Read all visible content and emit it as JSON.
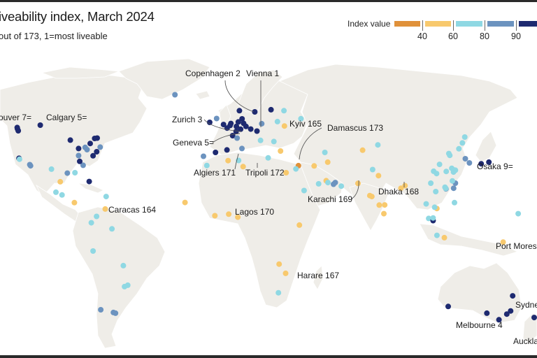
{
  "header": {
    "title": "iveability index, March 2024",
    "subtitle": "out of 173, 1=most liveable"
  },
  "legend": {
    "label": "Index value",
    "ticks": [
      "40",
      "60",
      "80",
      "90"
    ],
    "colors": [
      "#e0913a",
      "#f8c96d",
      "#8fd8e3",
      "#6c93bf",
      "#1e2a70"
    ]
  },
  "chart_data": {
    "type": "scatter",
    "title": "iveability index, March 2024",
    "subtitle": "out of 173, 1=most liveable",
    "legend_placement": "top-right",
    "legend_bins": [
      "<40",
      "40-60",
      "60-80",
      "80-90",
      ">90"
    ],
    "land_color": "#efede8",
    "labeled_cities": [
      {
        "name": "Vienna 1",
        "rank": 1
      },
      {
        "name": "Copenhagen 2",
        "rank": 2
      },
      {
        "name": "Zurich 3",
        "rank": 3
      },
      {
        "name": "Melbourne 4",
        "rank": 4
      },
      {
        "name": "Geneva 5=",
        "rank": 5
      },
      {
        "name": "Calgary 5=",
        "rank": 5
      },
      {
        "name": "ouver 7=",
        "rank": 7
      },
      {
        "name": "Sydne",
        "rank": null
      },
      {
        "name": "Osaka 9=",
        "rank": 9
      },
      {
        "name": "Auckla",
        "rank": null
      },
      {
        "name": "Caracas 164",
        "rank": 164
      },
      {
        "name": "Kyiv 165",
        "rank": 165
      },
      {
        "name": "Harare 167",
        "rank": 167
      },
      {
        "name": "Dhaka 168",
        "rank": 168
      },
      {
        "name": "Karachi 169",
        "rank": 169
      },
      {
        "name": "Lagos 170",
        "rank": 170
      },
      {
        "name": "Algiers 171",
        "rank": 171
      },
      {
        "name": "Tripoli 172",
        "rank": 172
      },
      {
        "name": "Damascus 173",
        "rank": 173
      },
      {
        "name": "Port Moresb",
        "rank": null
      }
    ],
    "points": [
      {
        "lon": -123.1,
        "lat": 49.3,
        "bin": 4
      },
      {
        "lon": -122.7,
        "lat": 47.6,
        "bin": 4
      },
      {
        "lon": -123.0,
        "lat": 48.4,
        "bin": 4
      },
      {
        "lon": -114.1,
        "lat": 51.0,
        "bin": 4
      },
      {
        "lon": -122.4,
        "lat": 37.8,
        "bin": 4
      },
      {
        "lon": -122.2,
        "lat": 37.4,
        "bin": 2
      },
      {
        "lon": -118.2,
        "lat": 34.1,
        "bin": 3
      },
      {
        "lon": -117.9,
        "lat": 33.4,
        "bin": 3
      },
      {
        "lon": -93.3,
        "lat": 44.9,
        "bin": 4
      },
      {
        "lon": -87.6,
        "lat": 41.9,
        "bin": 4
      },
      {
        "lon": -83.0,
        "lat": 42.3,
        "bin": 3
      },
      {
        "lon": -81.7,
        "lat": 41.5,
        "bin": 3
      },
      {
        "lon": -79.4,
        "lat": 43.7,
        "bin": 4
      },
      {
        "lon": -75.7,
        "lat": 45.4,
        "bin": 4
      },
      {
        "lon": -73.6,
        "lat": 45.5,
        "bin": 4
      },
      {
        "lon": -71.1,
        "lat": 42.4,
        "bin": 3
      },
      {
        "lon": -74.0,
        "lat": 40.7,
        "bin": 4
      },
      {
        "lon": -77.0,
        "lat": 38.9,
        "bin": 4
      },
      {
        "lon": -84.4,
        "lat": 33.7,
        "bin": 3
      },
      {
        "lon": -87.6,
        "lat": 39.0,
        "bin": 3
      },
      {
        "lon": -86.8,
        "lat": 36.2,
        "bin": 4
      },
      {
        "lon": -95.4,
        "lat": 29.8,
        "bin": 3
      },
      {
        "lon": -90.1,
        "lat": 30.0,
        "bin": 2
      },
      {
        "lon": -80.2,
        "lat": 25.8,
        "bin": 4
      },
      {
        "lon": -106.4,
        "lat": 31.7,
        "bin": 2
      },
      {
        "lon": -100.3,
        "lat": 25.7,
        "bin": 1
      },
      {
        "lon": -99.1,
        "lat": 19.4,
        "bin": 2
      },
      {
        "lon": -103.3,
        "lat": 20.7,
        "bin": 2
      },
      {
        "lon": -90.5,
        "lat": 14.6,
        "bin": 1
      },
      {
        "lon": -66.1,
        "lat": 18.5,
        "bin": 2
      },
      {
        "lon": -66.9,
        "lat": 10.5,
        "bin": 1
      },
      {
        "lon": -74.1,
        "lat": 4.7,
        "bin": 2
      },
      {
        "lon": -78.5,
        "lat": -0.2,
        "bin": 2
      },
      {
        "lon": -60.0,
        "lat": -3.1,
        "bin": 2
      },
      {
        "lon": -77.0,
        "lat": -12.0,
        "bin": 2
      },
      {
        "lon": -47.9,
        "lat": -15.8,
        "bin": 2
      },
      {
        "lon": -43.2,
        "lat": -22.9,
        "bin": 2
      },
      {
        "lon": -46.6,
        "lat": -23.5,
        "bin": 2
      },
      {
        "lon": -70.6,
        "lat": -33.4,
        "bin": 3
      },
      {
        "lon": -58.4,
        "lat": -34.6,
        "bin": 3
      },
      {
        "lon": -56.2,
        "lat": -34.9,
        "bin": 3
      },
      {
        "lon": -21.9,
        "lat": 64.1,
        "bin": 3
      },
      {
        "lon": -0.1,
        "lat": 51.5,
        "bin": 4
      },
      {
        "lon": -6.3,
        "lat": 53.3,
        "bin": 4
      },
      {
        "lon": -3.2,
        "lat": 55.9,
        "bin": 3
      },
      {
        "lon": 2.3,
        "lat": 48.9,
        "bin": 4
      },
      {
        "lon": 4.9,
        "lat": 52.4,
        "bin": 4
      },
      {
        "lon": 4.4,
        "lat": 50.8,
        "bin": 4
      },
      {
        "lon": 8.7,
        "lat": 50.1,
        "bin": 4
      },
      {
        "lon": 13.4,
        "lat": 52.5,
        "bin": 4
      },
      {
        "lon": 10.0,
        "lat": 53.6,
        "bin": 4
      },
      {
        "lon": 12.6,
        "lat": 55.7,
        "bin": 4
      },
      {
        "lon": 10.8,
        "lat": 59.9,
        "bin": 4
      },
      {
        "lon": 18.1,
        "lat": 59.3,
        "bin": 4
      },
      {
        "lon": 24.9,
        "lat": 60.2,
        "bin": 4
      },
      {
        "lon": 30.3,
        "lat": 59.9,
        "bin": 2
      },
      {
        "lon": 37.6,
        "lat": 55.8,
        "bin": 2
      },
      {
        "lon": 8.5,
        "lat": 47.4,
        "bin": 4
      },
      {
        "lon": 6.1,
        "lat": 46.2,
        "bin": 4
      },
      {
        "lon": 11.6,
        "lat": 48.1,
        "bin": 4
      },
      {
        "lon": 16.4,
        "lat": 48.2,
        "bin": 4
      },
      {
        "lon": 14.4,
        "lat": 50.1,
        "bin": 4
      },
      {
        "lon": 21.0,
        "lat": 52.2,
        "bin": 3
      },
      {
        "lon": 19.0,
        "lat": 47.5,
        "bin": 4
      },
      {
        "lon": 9.2,
        "lat": 45.5,
        "bin": 3
      },
      {
        "lon": 12.5,
        "lat": 41.9,
        "bin": 3
      },
      {
        "lon": -3.7,
        "lat": 40.4,
        "bin": 4
      },
      {
        "lon": 2.2,
        "lat": 41.4,
        "bin": 4
      },
      {
        "lon": -9.1,
        "lat": 38.7,
        "bin": 3
      },
      {
        "lon": 23.7,
        "lat": 38.0,
        "bin": 2
      },
      {
        "lon": 26.1,
        "lat": 44.4,
        "bin": 2
      },
      {
        "lon": 20.5,
        "lat": 44.8,
        "bin": 2
      },
      {
        "lon": 28.9,
        "lat": 41.0,
        "bin": 1
      },
      {
        "lon": 30.5,
        "lat": 50.4,
        "bin": 1
      },
      {
        "lon": 27.6,
        "lat": 53.9,
        "bin": 2
      },
      {
        "lon": 3.0,
        "lat": 36.7,
        "bin": 1
      },
      {
        "lon": -7.6,
        "lat": 33.6,
        "bin": 2
      },
      {
        "lon": 10.2,
        "lat": 36.8,
        "bin": 2
      },
      {
        "lon": 13.2,
        "lat": 32.9,
        "bin": 1
      },
      {
        "lon": 36.3,
        "lat": 33.5,
        "bin": 0
      },
      {
        "lon": 35.2,
        "lat": 31.8,
        "bin": 2
      },
      {
        "lon": 31.2,
        "lat": 30.0,
        "bin": 1
      },
      {
        "lon": 44.4,
        "lat": 33.3,
        "bin": 1
      },
      {
        "lon": 49.9,
        "lat": 40.4,
        "bin": 2
      },
      {
        "lon": 51.4,
        "lat": 35.7,
        "bin": 1
      },
      {
        "lon": 46.7,
        "lat": 24.7,
        "bin": 2
      },
      {
        "lon": 50.6,
        "lat": 26.2,
        "bin": 1
      },
      {
        "lon": 51.5,
        "lat": 25.3,
        "bin": 2
      },
      {
        "lon": 54.4,
        "lat": 24.5,
        "bin": 3
      },
      {
        "lon": 55.3,
        "lat": 25.3,
        "bin": 3
      },
      {
        "lon": 58.4,
        "lat": 23.6,
        "bin": 2
      },
      {
        "lon": 39.2,
        "lat": 21.5,
        "bin": 2
      },
      {
        "lon": 69.3,
        "lat": 41.3,
        "bin": 1
      },
      {
        "lon": 76.9,
        "lat": 43.2,
        "bin": 2
      },
      {
        "lon": 67.0,
        "lat": 24.9,
        "bin": 1
      },
      {
        "lon": 74.3,
        "lat": 31.5,
        "bin": 2
      },
      {
        "lon": 77.2,
        "lat": 28.6,
        "bin": 1
      },
      {
        "lon": 72.9,
        "lat": 19.1,
        "bin": 1
      },
      {
        "lon": 73.9,
        "lat": 18.5,
        "bin": 1
      },
      {
        "lon": 88.4,
        "lat": 22.6,
        "bin": 1
      },
      {
        "lon": 90.4,
        "lat": 23.8,
        "bin": 1
      },
      {
        "lon": 77.6,
        "lat": 13.0,
        "bin": 1
      },
      {
        "lon": 80.3,
        "lat": 13.1,
        "bin": 1
      },
      {
        "lon": 79.9,
        "lat": 6.9,
        "bin": 1
      },
      {
        "lon": -17.4,
        "lat": 14.7,
        "bin": 1
      },
      {
        "lon": -4.0,
        "lat": 5.3,
        "bin": 1
      },
      {
        "lon": 3.4,
        "lat": 6.5,
        "bin": 1
      },
      {
        "lon": 9.7,
        "lat": 4.1,
        "bin": 1
      },
      {
        "lon": 36.8,
        "lat": -1.3,
        "bin": 1
      },
      {
        "lon": 28.3,
        "lat": -15.4,
        "bin": 1
      },
      {
        "lon": 31.0,
        "lat": -17.8,
        "bin": 1
      },
      {
        "lon": 28.0,
        "lat": -26.2,
        "bin": 2
      },
      {
        "lon": 116.4,
        "lat": 39.9,
        "bin": 2
      },
      {
        "lon": 117.2,
        "lat": 39.1,
        "bin": 2
      },
      {
        "lon": 123.4,
        "lat": 41.8,
        "bin": 2
      },
      {
        "lon": 126.6,
        "lat": 45.8,
        "bin": 2
      },
      {
        "lon": 125.3,
        "lat": 43.9,
        "bin": 2
      },
      {
        "lon": 104.1,
        "lat": 30.7,
        "bin": 2
      },
      {
        "lon": 106.5,
        "lat": 29.6,
        "bin": 2
      },
      {
        "lon": 108.9,
        "lat": 34.3,
        "bin": 2
      },
      {
        "lon": 114.3,
        "lat": 30.6,
        "bin": 2
      },
      {
        "lon": 118.8,
        "lat": 32.1,
        "bin": 2
      },
      {
        "lon": 121.5,
        "lat": 31.2,
        "bin": 2
      },
      {
        "lon": 120.2,
        "lat": 30.3,
        "bin": 2
      },
      {
        "lon": 120.6,
        "lat": 31.3,
        "bin": 2
      },
      {
        "lon": 126.9,
        "lat": 37.6,
        "bin": 3
      },
      {
        "lon": 129.1,
        "lat": 35.2,
        "bin": 3
      },
      {
        "lon": 135.5,
        "lat": 34.7,
        "bin": 4
      },
      {
        "lon": 139.7,
        "lat": 35.7,
        "bin": 4
      },
      {
        "lon": 121.5,
        "lat": 25.0,
        "bin": 3
      },
      {
        "lon": 120.3,
        "lat": 22.6,
        "bin": 3
      },
      {
        "lon": 113.3,
        "lat": 23.1,
        "bin": 2
      },
      {
        "lon": 114.1,
        "lat": 22.3,
        "bin": 3
      },
      {
        "lon": 113.9,
        "lat": 22.5,
        "bin": 2
      },
      {
        "lon": 119.3,
        "lat": 26.1,
        "bin": 2
      },
      {
        "lon": 102.7,
        "lat": 25.0,
        "bin": 2
      },
      {
        "lon": 105.8,
        "lat": 21.0,
        "bin": 2
      },
      {
        "lon": 100.5,
        "lat": 13.8,
        "bin": 2
      },
      {
        "lon": 106.7,
        "lat": 10.8,
        "bin": 1
      },
      {
        "lon": 104.9,
        "lat": 11.6,
        "bin": 2
      },
      {
        "lon": 121.0,
        "lat": 14.6,
        "bin": 2
      },
      {
        "lon": 101.7,
        "lat": 3.1,
        "bin": 2
      },
      {
        "lon": 103.8,
        "lat": 1.4,
        "bin": 4
      },
      {
        "lon": 106.8,
        "lat": -6.2,
        "bin": 2
      },
      {
        "lon": 112.8,
        "lat": -7.3,
        "bin": 1
      },
      {
        "lon": 103.8,
        "lat": 3.5,
        "bin": 2
      },
      {
        "lon": 147.2,
        "lat": -9.4,
        "bin": 1
      },
      {
        "lon": 115.9,
        "lat": -32.0,
        "bin": 4
      },
      {
        "lon": 138.6,
        "lat": -34.9,
        "bin": 4
      },
      {
        "lon": 145.0,
        "lat": -37.8,
        "bin": 4
      },
      {
        "lon": 151.2,
        "lat": -33.9,
        "bin": 4
      },
      {
        "lon": 153.0,
        "lat": -27.5,
        "bin": 4
      },
      {
        "lon": 149.1,
        "lat": -35.3,
        "bin": 4
      },
      {
        "lon": 174.8,
        "lat": -36.8,
        "bin": 4
      },
      {
        "lon": 158.0,
        "lat": 6.9,
        "bin": 2
      }
    ]
  }
}
